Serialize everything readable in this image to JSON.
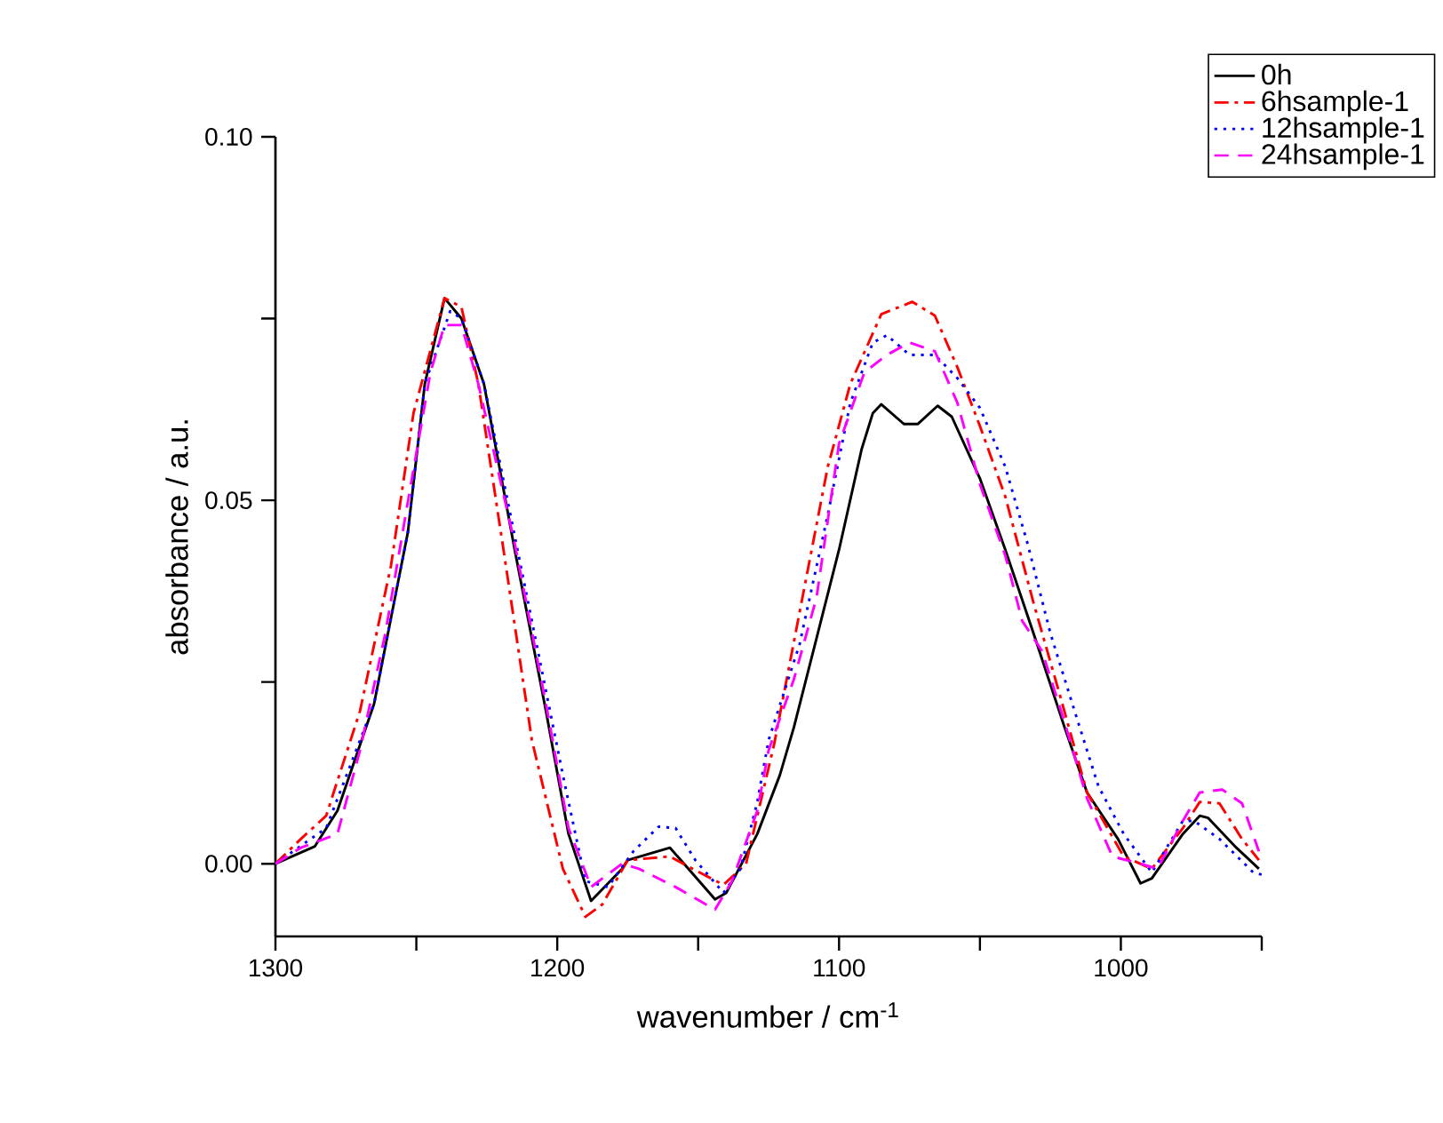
{
  "chart_data": {
    "type": "line",
    "xlabel": "wavenumber / cm$^{-1}$",
    "ylabel": "absorbance / a.u.",
    "xlim": [
      1300,
      950
    ],
    "ylim": [
      -0.01,
      0.1
    ],
    "xticks": [
      1300,
      {
        "value": 1250,
        "label": null
      },
      1200,
      {
        "value": 1150,
        "label": null
      },
      1100,
      {
        "value": 1050,
        "label": null
      },
      1000,
      {
        "value": 950,
        "label": null
      }
    ],
    "yticks": [
      {
        "value": 0,
        "label": "0.00"
      },
      {
        "value": 0.025,
        "label": null
      },
      {
        "value": 0.05,
        "label": "0.05"
      },
      {
        "value": 0.075,
        "label": null
      },
      {
        "value": 0.1,
        "label": "0.10"
      }
    ],
    "legend": "top right",
    "series": [
      {
        "name": "0h",
        "color": "#000000",
        "line_style": "solid",
        "x": [
          1300,
          1286,
          1278,
          1265,
          1253,
          1247,
          1240,
          1234,
          1226,
          1215,
          1204,
          1196,
          1188,
          1177,
          1175,
          1160,
          1144,
          1140,
          1129,
          1121,
          1116,
          1108,
          1100,
          1092,
          1088,
          1085,
          1077,
          1072,
          1065,
          1060,
          1050,
          1041,
          1031,
          1020,
          1012,
          1001,
          993,
          989,
          978,
          972,
          969,
          959,
          951
        ],
        "values": [
          0.0,
          0.0024,
          0.0073,
          0.022,
          0.0456,
          0.066,
          0.0778,
          0.075,
          0.066,
          0.043,
          0.021,
          0.0041,
          -0.0051,
          -0.0007,
          0.0005,
          0.0022,
          -0.0049,
          -0.004,
          0.0041,
          0.0122,
          0.0188,
          0.031,
          0.0432,
          0.057,
          0.062,
          0.0632,
          0.0605,
          0.0605,
          0.063,
          0.0615,
          0.053,
          0.0432,
          0.0317,
          0.0188,
          0.0098,
          0.0034,
          -0.0027,
          -0.002,
          0.0041,
          0.0066,
          0.0063,
          0.0022,
          -0.0007
        ]
      },
      {
        "name": "6hsample-1",
        "color": "#ff0000",
        "line_style": "dashdot",
        "x": [
          1300,
          1291,
          1282,
          1270,
          1259,
          1251,
          1240,
          1234,
          1228,
          1219,
          1209,
          1198,
          1190,
          1184,
          1175,
          1160,
          1152,
          1141,
          1133,
          1123,
          1113,
          1104,
          1096,
          1085,
          1074,
          1066,
          1058,
          1050,
          1041,
          1031,
          1022,
          1012,
          999,
          989,
          978,
          972,
          965,
          957,
          951
        ],
        "values": [
          0.0,
          0.0034,
          0.0066,
          0.021,
          0.041,
          0.062,
          0.0778,
          0.0766,
          0.066,
          0.043,
          0.017,
          -0.0007,
          -0.0073,
          -0.0056,
          0.0005,
          0.001,
          -0.0007,
          -0.0029,
          0.0,
          0.0165,
          0.0366,
          0.0546,
          0.066,
          0.0756,
          0.0773,
          0.0754,
          0.0683,
          0.0602,
          0.0505,
          0.0359,
          0.0237,
          0.0098,
          0.001,
          -0.0007,
          0.0049,
          0.0085,
          0.0083,
          0.0034,
          0.0005
        ]
      },
      {
        "name": "12hsample-1",
        "color": "#0000ff",
        "line_style": "dotted",
        "x": [
          1300,
          1282,
          1265,
          1253,
          1247,
          1238,
          1234,
          1226,
          1209,
          1198,
          1190,
          1182,
          1173,
          1164,
          1158,
          1151,
          1141,
          1135,
          1129,
          1125,
          1114,
          1104,
          1096,
          1088,
          1083,
          1075,
          1066,
          1058,
          1050,
          1041,
          1033,
          1025,
          1016,
          1008,
          999,
          989,
          978,
          974,
          965,
          953,
          950
        ],
        "values": [
          0.0,
          0.0049,
          0.022,
          0.0456,
          0.066,
          0.076,
          0.075,
          0.066,
          0.0334,
          0.0122,
          -0.0024,
          -0.0032,
          0.0017,
          0.0051,
          0.0049,
          0.0005,
          -0.004,
          -0.0007,
          0.0085,
          0.017,
          0.0302,
          0.048,
          0.0634,
          0.0717,
          0.0727,
          0.07,
          0.07,
          0.0668,
          0.0627,
          0.0546,
          0.0439,
          0.0317,
          0.0205,
          0.0107,
          0.0041,
          -0.0012,
          0.0059,
          0.0059,
          0.0034,
          -0.0012,
          -0.0015
        ]
      },
      {
        "name": "24hsample-1",
        "color": "#ff00ff",
        "line_style": "dashed",
        "x": [
          1300,
          1291,
          1278,
          1270,
          1261,
          1253,
          1245,
          1240,
          1234,
          1228,
          1215,
          1204,
          1196,
          1188,
          1177,
          1171,
          1158,
          1144,
          1138,
          1129,
          1125,
          1116,
          1108,
          1100,
          1091,
          1083,
          1075,
          1066,
          1058,
          1050,
          1041,
          1035,
          1028,
          1020,
          1012,
          1003,
          993,
          987,
          978,
          972,
          964,
          957,
          951
        ],
        "values": [
          0.0,
          0.0022,
          0.0041,
          0.0156,
          0.0317,
          0.0498,
          0.0676,
          0.0741,
          0.0741,
          0.066,
          0.0439,
          0.022,
          0.0049,
          -0.0032,
          0.0,
          -0.0007,
          -0.0032,
          -0.0063,
          -0.0024,
          0.0073,
          0.0156,
          0.0254,
          0.0366,
          0.0578,
          0.0676,
          0.07,
          0.0717,
          0.0705,
          0.0634,
          0.0522,
          0.0424,
          0.0334,
          0.0293,
          0.0195,
          0.009,
          0.001,
          0.0,
          -0.0007,
          0.0059,
          0.0098,
          0.0102,
          0.0083,
          0.0017
        ]
      }
    ]
  }
}
